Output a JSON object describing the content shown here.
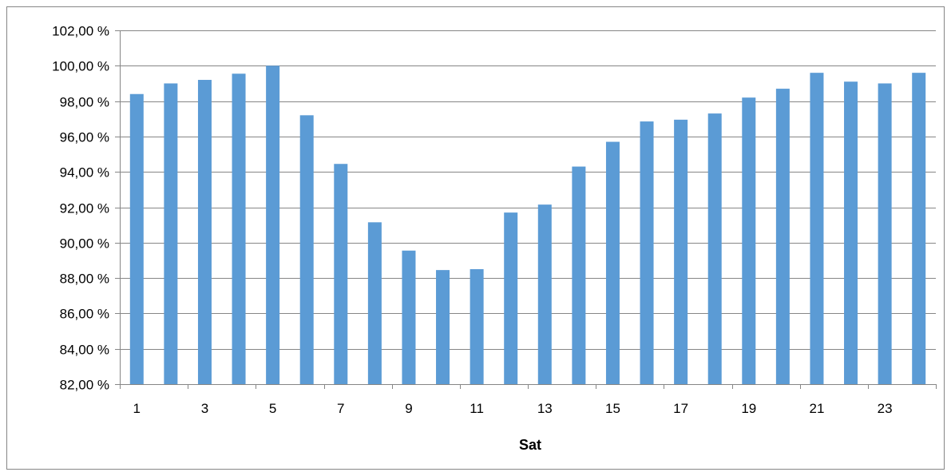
{
  "chart_data": {
    "type": "bar",
    "xlabel": "Sat",
    "ylabel": "",
    "title": "",
    "ylim": [
      82,
      102
    ],
    "ytick_step": 2,
    "ytick_labels": [
      "82,00 %",
      "84,00 %",
      "86,00 %",
      "88,00 %",
      "90,00 %",
      "92,00 %",
      "94,00 %",
      "96,00 %",
      "98,00 %",
      "100,00 %",
      "102,00 %"
    ],
    "categories": [
      "1",
      "2",
      "3",
      "4",
      "5",
      "6",
      "7",
      "8",
      "9",
      "10",
      "11",
      "12",
      "13",
      "14",
      "15",
      "16",
      "17",
      "18",
      "19",
      "20",
      "21",
      "22",
      "23",
      "24"
    ],
    "xtick_labels_shown": [
      "1",
      "",
      "3",
      "",
      "5",
      "",
      "7",
      "",
      "9",
      "",
      "11",
      "",
      "13",
      "",
      "15",
      "",
      "17",
      "",
      "19",
      "",
      "21",
      "",
      "23",
      ""
    ],
    "values": [
      98.4,
      99.0,
      99.2,
      99.55,
      100.0,
      97.2,
      94.45,
      91.15,
      89.55,
      88.45,
      88.5,
      91.7,
      92.15,
      94.3,
      95.7,
      96.85,
      96.95,
      97.3,
      98.2,
      98.7,
      99.6,
      99.1,
      99.0,
      99.6
    ],
    "grid": true,
    "legend": "none",
    "colors": {
      "bar": "#5B9BD5",
      "grid": "#868686",
      "axis": "#868686",
      "border": "#868686"
    }
  }
}
